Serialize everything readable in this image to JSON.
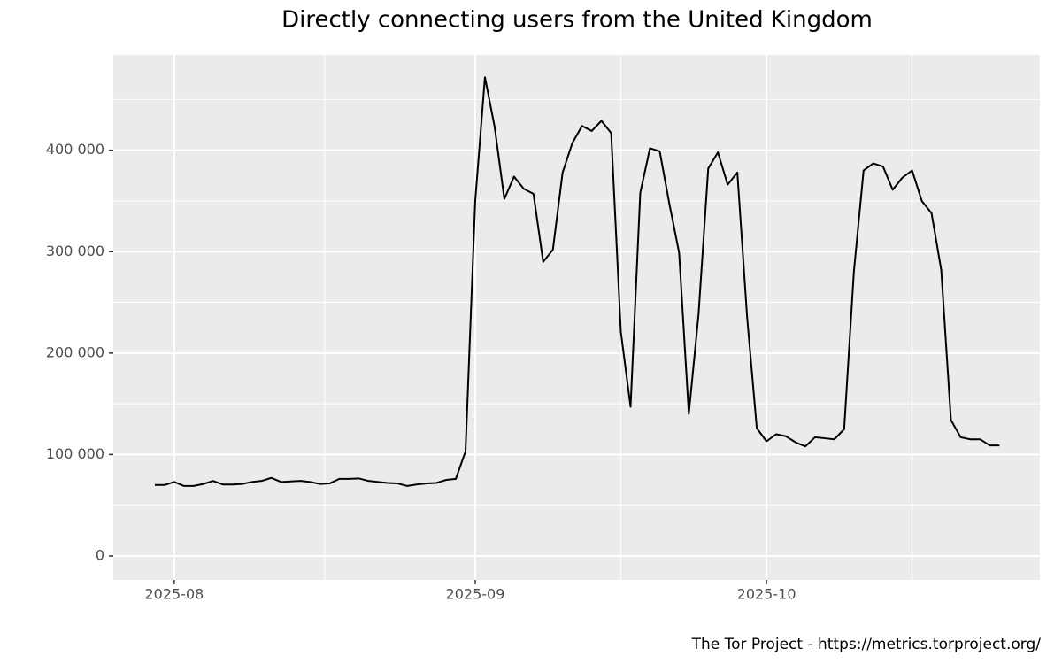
{
  "chart_data": {
    "type": "line",
    "title": "Directly connecting users from the United Kingdom",
    "caption": "The Tor Project - https://metrics.torproject.org/",
    "series": [
      {
        "color": "#000000",
        "values": [
          70000,
          70000,
          73000,
          69000,
          69000,
          71000,
          74000,
          70500,
          70500,
          71000,
          73000,
          74000,
          77000,
          73000,
          73500,
          74000,
          73000,
          71000,
          71500,
          76000,
          76000,
          76500,
          74000,
          73000,
          72000,
          71500,
          69000,
          70500,
          71500,
          72000,
          75000,
          76000,
          103000,
          350000,
          472000,
          423000,
          352000,
          374000,
          362000,
          357000,
          290000,
          302000,
          378000,
          407000,
          424000,
          419000,
          429000,
          417000,
          221000,
          147000,
          358000,
          402000,
          399000,
          347000,
          299000,
          140000,
          238000,
          382000,
          398000,
          366000,
          378000,
          236000,
          126000,
          113000,
          120000,
          118000,
          112000,
          108000,
          117000,
          116000,
          115000,
          125000,
          280000,
          380000,
          387000,
          384000,
          361000,
          373000,
          380000,
          350000,
          338000,
          282000,
          134000,
          117000,
          115000,
          115000,
          109000,
          109000
        ]
      }
    ],
    "xlim": [
      -4.28,
      91.16
    ],
    "xticks": [
      {
        "value": 2,
        "label": "2025-08"
      },
      {
        "value": 33,
        "label": "2025-09"
      },
      {
        "value": 63,
        "label": "2025-10"
      }
    ],
    "ylim": [
      -23600,
      494000
    ],
    "yticks": [
      {
        "value": 0,
        "label": "0"
      },
      {
        "value": 100000,
        "label": "100 000"
      },
      {
        "value": 200000,
        "label": "200 000"
      },
      {
        "value": 300000,
        "label": "300 000"
      },
      {
        "value": 400000,
        "label": "400 000"
      }
    ],
    "grid": true
  }
}
